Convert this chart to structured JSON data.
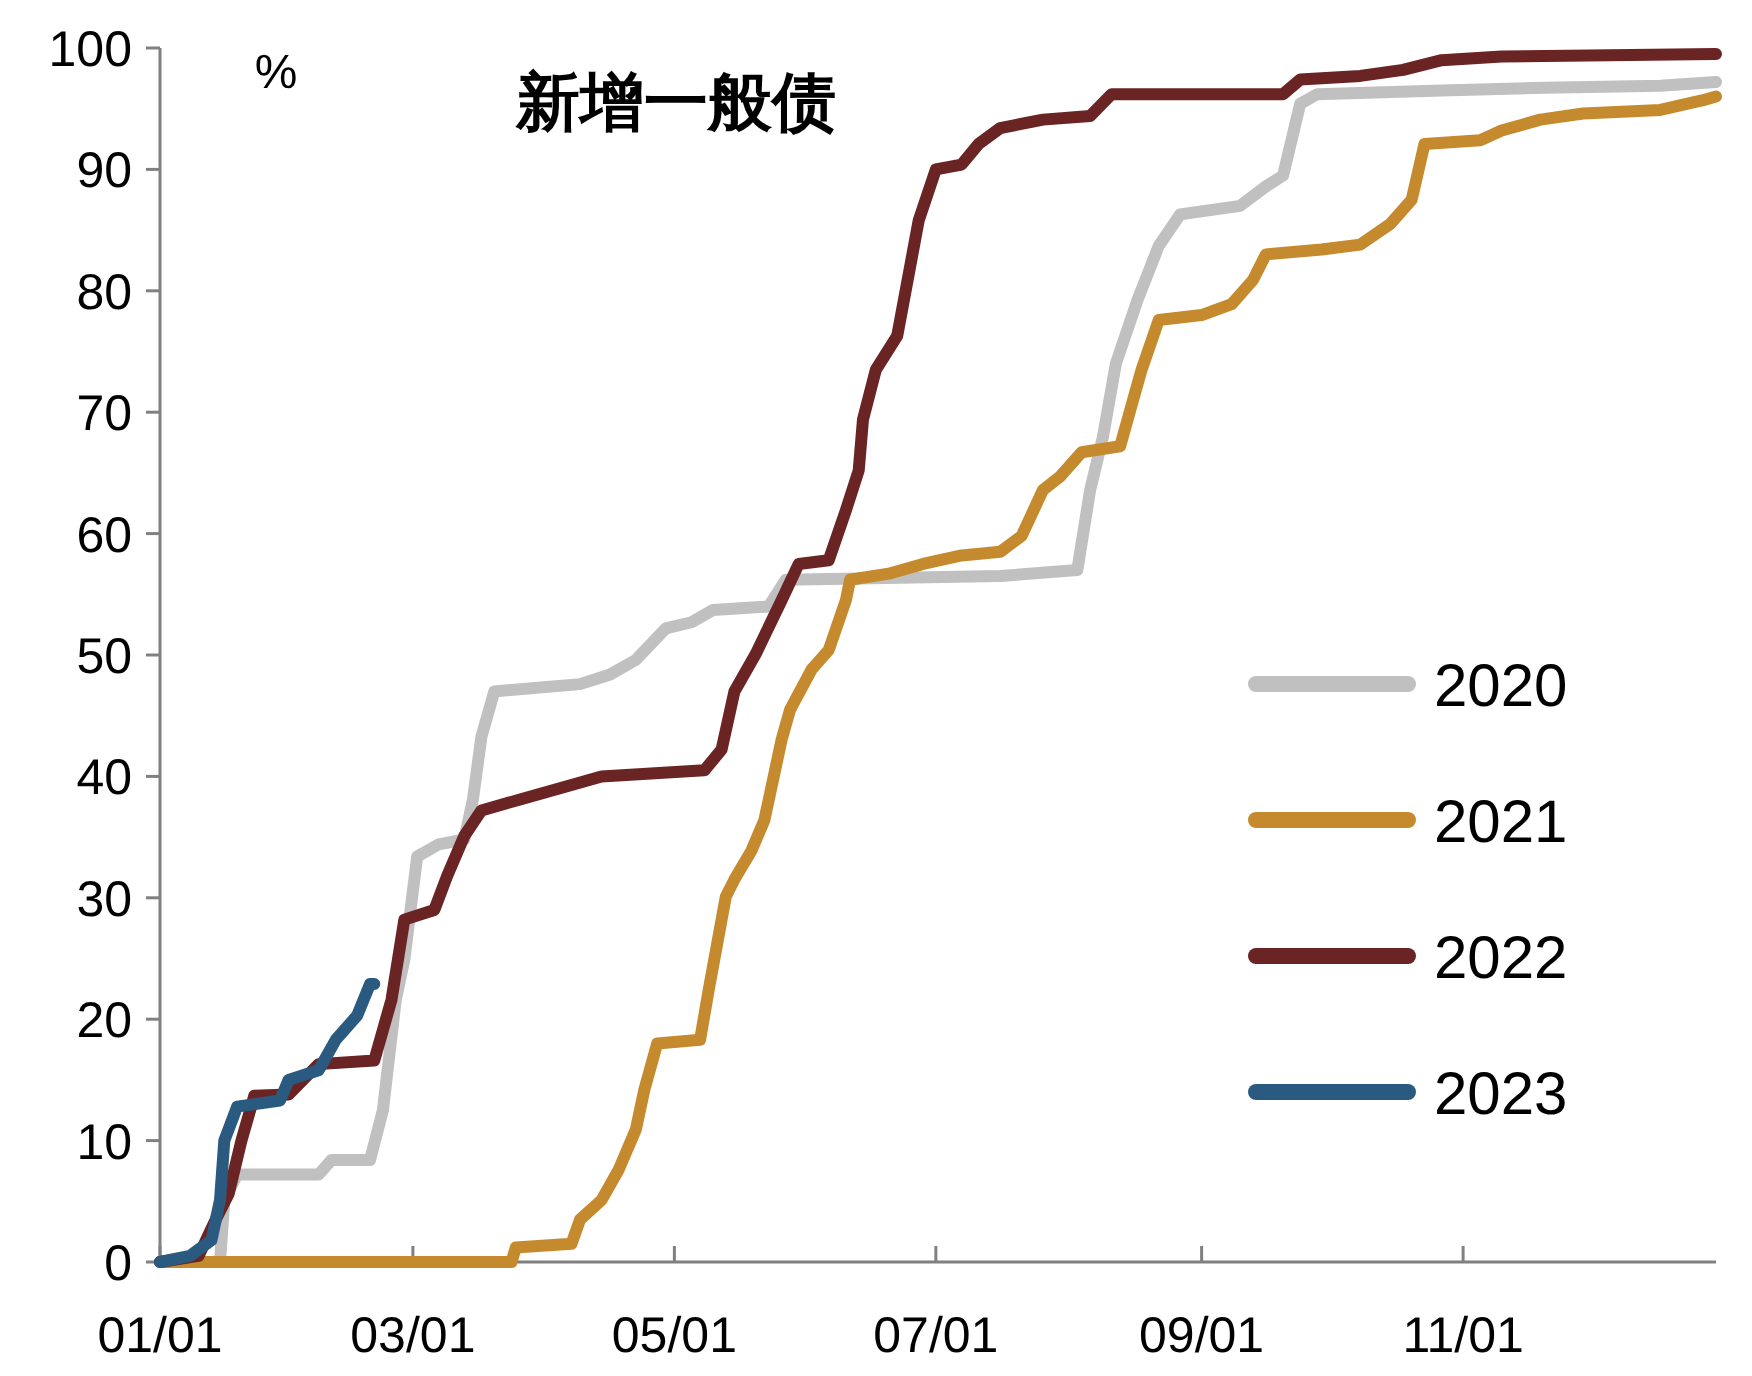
{
  "chart_data": {
    "type": "line",
    "title": "新增一般债",
    "ylabel": "%",
    "xlim": [
      "--01-01",
      "--12-30"
    ],
    "xticks": [
      {
        "value": "--01-01",
        "label": "01/01"
      },
      {
        "value": "--03-01",
        "label": "03/01"
      },
      {
        "value": "--05-01",
        "label": "05/01"
      },
      {
        "value": "--07-01",
        "label": "07/01"
      },
      {
        "value": "--09-01",
        "label": "09/01"
      },
      {
        "value": "--11-01",
        "label": "11/01"
      }
    ],
    "ylim": [
      0,
      100
    ],
    "yticks": [
      0,
      10,
      20,
      30,
      40,
      50,
      60,
      70,
      80,
      90,
      100
    ],
    "grid": false,
    "legend": "bottom right",
    "marker": "none",
    "line_style": "solid",
    "series": [
      {
        "name": "2020",
        "color": "#c0c0c0",
        "x": [
          "--01-01",
          "--01-15",
          "--01-16",
          "--01-19",
          "--02-07",
          "--02-10",
          "--02-19",
          "--02-22",
          "--02-25",
          "--02-27",
          "--03-02",
          "--03-07",
          "--03-13",
          "--03-15",
          "--03-17",
          "--03-20",
          "--04-09",
          "--04-16",
          "--04-22",
          "--04-29",
          "--05-05",
          "--05-10",
          "--05-23",
          "--05-27",
          "--07-16",
          "--08-03",
          "--08-06",
          "--08-09",
          "--08-12",
          "--08-17",
          "--08-22",
          "--08-27",
          "--09-10",
          "--09-16",
          "--09-20",
          "--09-24",
          "--09-28",
          "--10-27",
          "--11-17",
          "--12-17",
          "--12-30"
        ],
        "values": [
          0,
          0,
          5.1,
          7.2,
          7.2,
          8.4,
          8.4,
          12.5,
          21.6,
          24.9,
          33.4,
          34.4,
          34.8,
          38.1,
          43.3,
          47,
          47.6,
          48.4,
          49.6,
          52.2,
          52.7,
          53.7,
          54,
          56.2,
          56.5,
          57,
          63.6,
          68,
          74,
          79.2,
          83.7,
          86.3,
          87,
          88.6,
          89.5,
          95.4,
          96.2,
          96.5,
          96.7,
          96.9,
          97.2
        ]
      },
      {
        "name": "2021",
        "color": "#c68a2e",
        "x": [
          "--01-01",
          "--03-24",
          "--03-25",
          "--04-07",
          "--04-09",
          "--04-14",
          "--04-18",
          "--04-22",
          "--04-24",
          "--04-27",
          "--05-07",
          "--05-09",
          "--05-13",
          "--05-15",
          "--05-19",
          "--05-22",
          "--05-26",
          "--05-28",
          "--06-02",
          "--06-06",
          "--06-10",
          "--06-11",
          "--06-20",
          "--06-28",
          "--07-07",
          "--07-16",
          "--07-21",
          "--07-26",
          "--07-30",
          "--08-04",
          "--08-13",
          "--08-16",
          "--08-18",
          "--08-22",
          "--09-01",
          "--09-08",
          "--09-13",
          "--09-16",
          "--09-29",
          "--10-08",
          "--10-15",
          "--10-20",
          "--10-23",
          "--11-05",
          "--11-10",
          "--11-19",
          "--11-29",
          "--12-17",
          "--12-27",
          "--12-30"
        ],
        "values": [
          0,
          0,
          1.2,
          1.5,
          3.5,
          5.1,
          7.6,
          10.9,
          14.2,
          18,
          18.3,
          22.4,
          30.1,
          31.5,
          33.9,
          36.4,
          43,
          45.5,
          48.8,
          50.4,
          54.5,
          56.2,
          56.7,
          57.5,
          58.2,
          58.5,
          59.8,
          63.6,
          64.7,
          66.7,
          67.2,
          71,
          73.5,
          77.6,
          78,
          78.9,
          80.9,
          83,
          83.4,
          83.8,
          85.5,
          87.5,
          92.1,
          92.4,
          93.2,
          94.1,
          94.6,
          94.9,
          95.7,
          96
        ]
      },
      {
        "name": "2022",
        "color": "#6b2424",
        "x": [
          "--01-01",
          "--01-10",
          "--01-14",
          "--01-17",
          "--01-20",
          "--01-23",
          "--01-31",
          "--02-07",
          "--02-20",
          "--02-24",
          "--02-27",
          "--03-06",
          "--03-09",
          "--03-13",
          "--03-17",
          "--03-26",
          "--04-14",
          "--05-08",
          "--05-12",
          "--05-15",
          "--05-20",
          "--05-26",
          "--05-30",
          "--06-06",
          "--06-10",
          "--06-13",
          "--06-14",
          "--06-17",
          "--06-22",
          "--06-27",
          "--07-01",
          "--07-07",
          "--07-11",
          "--07-16",
          "--07-26",
          "--08-06",
          "--08-11",
          "--09-20",
          "--09-24",
          "--10-08",
          "--10-18",
          "--10-27",
          "--11-10",
          "--12-30"
        ],
        "values": [
          0,
          0.5,
          3.5,
          5.6,
          10,
          13.7,
          13.8,
          16.3,
          16.6,
          21.6,
          28.2,
          29,
          31.8,
          35.1,
          37.2,
          38.1,
          40,
          40.5,
          42.2,
          47,
          50.1,
          54.5,
          57.5,
          57.8,
          61.9,
          65.2,
          69.4,
          73.5,
          76.3,
          85.8,
          90,
          90.4,
          92.1,
          93.4,
          94.1,
          94.4,
          96.2,
          96.2,
          97.4,
          97.7,
          98.2,
          99,
          99.3,
          99.5
        ]
      },
      {
        "name": "2023",
        "color": "#2a5a80",
        "x": [
          "--01-01",
          "--01-08",
          "--01-13",
          "--01-15",
          "--01-16",
          "--01-19",
          "--01-29",
          "--01-31",
          "--02-07",
          "--02-11",
          "--02-16",
          "--02-19",
          "--02-20"
        ],
        "values": [
          0,
          0.5,
          1.8,
          5.1,
          10,
          12.8,
          13.3,
          15,
          15.8,
          18.3,
          20.3,
          22.9,
          22.9
        ]
      }
    ]
  }
}
